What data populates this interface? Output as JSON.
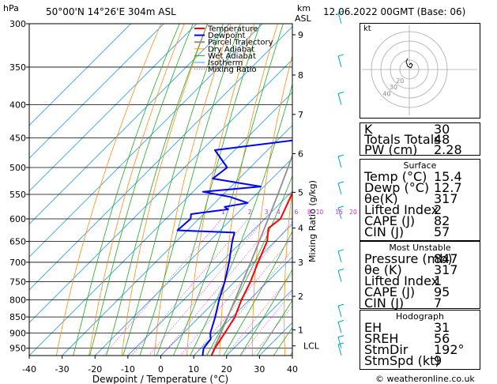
{
  "header": {
    "location": "50°00'N  14°26'E  304m  ASL",
    "datetime": "12.06.2022  00GMT  (Base: 06)",
    "hpa_label": "hPa",
    "km_label": "km",
    "asl_label": "ASL"
  },
  "chart_data": {
    "type": "line",
    "title": "50°00'N  14°26'E  304m  ASL",
    "xlabel": "Dewpoint / Temperature (°C)",
    "ylabel": "Mixing Ratio (g/kg)",
    "xlim": [
      -40,
      40
    ],
    "ylim_hpa": [
      975,
      300
    ],
    "x_ticks": [
      -40,
      -30,
      -20,
      -10,
      0,
      10,
      20,
      30,
      40
    ],
    "pressure_ticks": [
      300,
      350,
      400,
      450,
      500,
      550,
      600,
      650,
      700,
      750,
      800,
      850,
      900,
      950
    ],
    "km_ticks": [
      {
        "label": "9",
        "p": 312
      },
      {
        "label": "8",
        "p": 360
      },
      {
        "label": "7",
        "p": 414
      },
      {
        "label": "6",
        "p": 476
      },
      {
        "label": "5",
        "p": 546
      },
      {
        "label": "4",
        "p": 620
      },
      {
        "label": "3",
        "p": 700
      },
      {
        "label": "2",
        "p": 790
      },
      {
        "label": "1",
        "p": 890
      },
      {
        "label": "LCL",
        "p": 942
      }
    ],
    "mixing_ratio_labels": [
      "1",
      "2",
      "3",
      "4",
      "6",
      "8",
      "10",
      "15",
      "20",
      "25"
    ],
    "mixing_ratio_values": [
      1,
      2,
      3,
      4,
      6,
      8,
      10,
      15,
      20,
      25
    ],
    "legend": [
      "Temperature",
      "Dewpoint",
      "Parcel Trajectory",
      "Dry Adiabat",
      "Wet Adiabat",
      "Isotherm",
      "Mixing Ratio"
    ],
    "series": [
      {
        "name": "Temperature",
        "color": "#ff0000",
        "points": [
          [
            975,
            15.4
          ],
          [
            950,
            14.2
          ],
          [
            900,
            12.6
          ],
          [
            850,
            10.8
          ],
          [
            800,
            7.6
          ],
          [
            750,
            4.8
          ],
          [
            700,
            1.2
          ],
          [
            650,
            -2.4
          ],
          [
            620,
            -6.0
          ],
          [
            600,
            -5.2
          ],
          [
            550,
            -9.2
          ],
          [
            500,
            -13.6
          ],
          [
            450,
            -19.0
          ],
          [
            400,
            -25.5
          ],
          [
            350,
            -33.2
          ],
          [
            300,
            -42.6
          ]
        ]
      },
      {
        "name": "Dewpoint",
        "color": "#0000ff",
        "points": [
          [
            975,
            12.7
          ],
          [
            950,
            10.8
          ],
          [
            920,
            10.2
          ],
          [
            900,
            8.2
          ],
          [
            850,
            4.8
          ],
          [
            800,
            0.8
          ],
          [
            750,
            -3.0
          ],
          [
            700,
            -7.6
          ],
          [
            650,
            -13.0
          ],
          [
            630,
            -15.0
          ],
          [
            625,
            -33.0
          ],
          [
            600,
            -32.5
          ],
          [
            590,
            -33.8
          ],
          [
            580,
            -24.0
          ],
          [
            575,
            -25.8
          ],
          [
            567,
            -20.0
          ],
          [
            555,
            -27.2
          ],
          [
            545,
            -37.0
          ],
          [
            535,
            -21.0
          ],
          [
            520,
            -38.0
          ],
          [
            500,
            -37.0
          ],
          [
            470,
            -46.0
          ],
          [
            450,
            -20.0
          ],
          [
            400,
            -26.0
          ],
          [
            350,
            -38.0
          ],
          [
            310,
            -47.0
          ],
          [
            300,
            -48.0
          ]
        ]
      },
      {
        "name": "Parcel Trajectory",
        "color": "#909090",
        "points": [
          [
            975,
            15.4
          ],
          [
            942,
            13.6
          ],
          [
            900,
            11.4
          ],
          [
            850,
            8.6
          ],
          [
            800,
            5.6
          ],
          [
            750,
            2.4
          ],
          [
            700,
            -1.0
          ],
          [
            650,
            -4.8
          ],
          [
            600,
            -8.9
          ],
          [
            550,
            -13.4
          ],
          [
            500,
            -18.5
          ],
          [
            450,
            -24.2
          ],
          [
            400,
            -30.8
          ],
          [
            350,
            -38.5
          ],
          [
            300,
            -47.5
          ]
        ]
      }
    ],
    "wind_barb_levels": [
      975,
      950,
      900,
      850,
      750,
      700,
      600,
      550,
      500,
      400,
      350,
      300
    ]
  },
  "hodograph": {
    "unit_label": "kt",
    "ring_labels": [
      "10",
      "20",
      "30",
      "40"
    ],
    "points": [
      [
        0,
        6
      ],
      [
        2,
        8
      ],
      [
        4,
        6
      ],
      [
        2,
        2
      ],
      [
        -2,
        4
      ],
      [
        -4,
        10
      ],
      [
        -2,
        14
      ]
    ]
  },
  "indices": {
    "k_label": "K",
    "k_value": "30",
    "tt_label": "Totals Totals",
    "tt_value": "48",
    "pw_label": "PW (cm)",
    "pw_value": "2.28"
  },
  "surface": {
    "title": "Surface",
    "temp_label": "Temp (°C)",
    "temp_value": "15.4",
    "dewp_label": "Dewp (°C)",
    "dewp_value": "12.7",
    "theta_label": "θe(K)",
    "theta_value": "317",
    "li_label": "Lifted Index",
    "li_value": "2",
    "cape_label": "CAPE (J)",
    "cape_value": "82",
    "cin_label": "CIN (J)",
    "cin_value": "57"
  },
  "most_unstable": {
    "title": "Most Unstable",
    "pressure_label": "Pressure (mb)",
    "pressure_value": "847",
    "theta_label": "θe (K)",
    "theta_value": "317",
    "li_label": "Lifted Index",
    "li_value": "1",
    "cape_label": "CAPE (J)",
    "cape_value": "95",
    "cin_label": "CIN (J)",
    "cin_value": "7"
  },
  "hodo_table": {
    "title": "Hodograph",
    "eh_label": "EH",
    "eh_value": "31",
    "sreh_label": "SREH",
    "sreh_value": "56",
    "stmdir_label": "StmDir",
    "stmdir_value": "192°",
    "stmspd_label": "StmSpd (kt)",
    "stmspd_value": "9"
  },
  "copyright": "© weatheronline.co.uk"
}
